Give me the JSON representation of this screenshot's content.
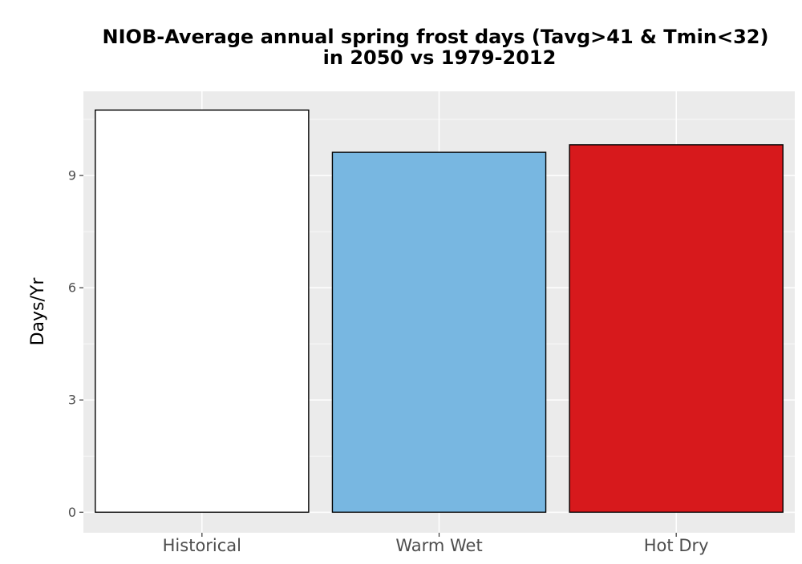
{
  "chart_data": {
    "type": "bar",
    "title": "NIOB-Average annual spring frost days (Tavg>41 & Tmin<32)",
    "subtitle": "in 2050 vs 1979-2012",
    "xlabel": "",
    "ylabel": "Days/Yr",
    "categories": [
      "Historical",
      "Warm Wet",
      "Hot Dry"
    ],
    "values": [
      10.75,
      9.62,
      9.82
    ],
    "bar_colors": [
      "#ffffff",
      "#78b7e1",
      "#d7191c"
    ],
    "bar_outline_color": "#000000",
    "ylim": [
      -0.55,
      11.25
    ],
    "yticks": [
      0,
      3,
      6,
      9
    ],
    "ytick_labels": [
      "0",
      "3",
      "6",
      "9"
    ],
    "panel_background": "#ebebeb",
    "grid": true,
    "grid_color": "#ffffff",
    "corner_mark": "Q"
  }
}
